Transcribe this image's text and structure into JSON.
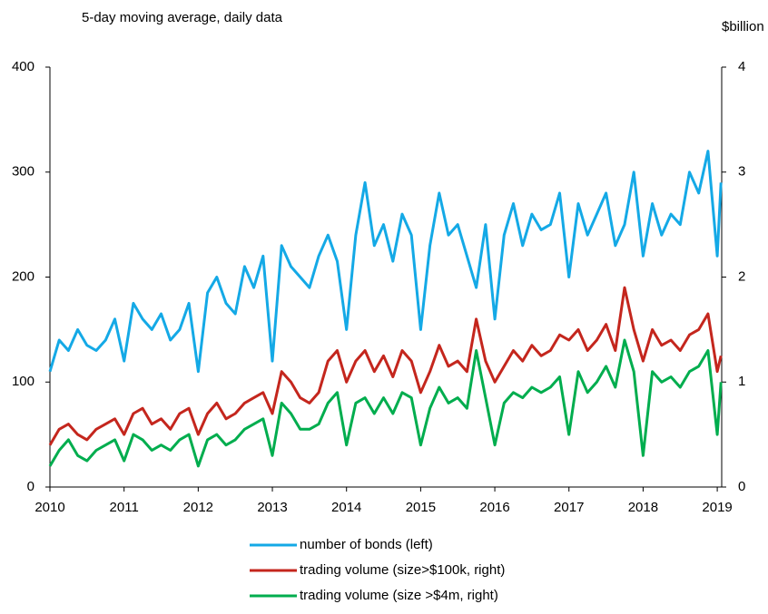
{
  "chart_data": {
    "type": "line",
    "subtitle": "5-day moving average, daily data",
    "y2_label": "$billion",
    "x": [
      2010,
      2010.125,
      2010.25,
      2010.375,
      2010.5,
      2010.625,
      2010.75,
      2010.875,
      2011,
      2011.125,
      2011.25,
      2011.375,
      2011.5,
      2011.625,
      2011.75,
      2011.875,
      2012,
      2012.125,
      2012.25,
      2012.375,
      2012.5,
      2012.625,
      2012.75,
      2012.875,
      2013,
      2013.125,
      2013.25,
      2013.375,
      2013.5,
      2013.625,
      2013.75,
      2013.875,
      2014,
      2014.125,
      2014.25,
      2014.375,
      2014.5,
      2014.625,
      2014.75,
      2014.875,
      2015,
      2015.125,
      2015.25,
      2015.375,
      2015.5,
      2015.625,
      2015.75,
      2015.875,
      2016,
      2016.125,
      2016.25,
      2016.375,
      2016.5,
      2016.625,
      2016.75,
      2016.875,
      2017,
      2017.125,
      2017.25,
      2017.375,
      2017.5,
      2017.625,
      2017.75,
      2017.875,
      2018,
      2018.125,
      2018.25,
      2018.375,
      2018.5,
      2018.625,
      2018.75,
      2018.875,
      2019,
      2019.05
    ],
    "series": [
      {
        "name": "number of bonds (left)",
        "color": "#14a9e6",
        "axis": "y",
        "values": [
          110,
          140,
          130,
          150,
          135,
          130,
          140,
          160,
          120,
          175,
          160,
          150,
          165,
          140,
          150,
          175,
          110,
          185,
          200,
          175,
          165,
          210,
          190,
          220,
          120,
          230,
          210,
          200,
          190,
          220,
          240,
          215,
          150,
          240,
          290,
          230,
          250,
          215,
          260,
          240,
          150,
          230,
          280,
          240,
          250,
          220,
          190,
          250,
          160,
          240,
          270,
          230,
          260,
          245,
          250,
          280,
          200,
          270,
          240,
          260,
          280,
          230,
          250,
          300,
          220,
          270,
          240,
          260,
          250,
          300,
          280,
          320,
          220,
          290
        ]
      },
      {
        "name": "trading volume (size>$100k, right)",
        "color": "#c4261d",
        "axis": "y2",
        "values": [
          0.4,
          0.55,
          0.6,
          0.5,
          0.45,
          0.55,
          0.6,
          0.65,
          0.5,
          0.7,
          0.75,
          0.6,
          0.65,
          0.55,
          0.7,
          0.75,
          0.5,
          0.7,
          0.8,
          0.65,
          0.7,
          0.8,
          0.85,
          0.9,
          0.7,
          1.1,
          1.0,
          0.85,
          0.8,
          0.9,
          1.2,
          1.3,
          1.0,
          1.2,
          1.3,
          1.1,
          1.25,
          1.05,
          1.3,
          1.2,
          0.9,
          1.1,
          1.35,
          1.15,
          1.2,
          1.1,
          1.6,
          1.2,
          1.0,
          1.15,
          1.3,
          1.2,
          1.35,
          1.25,
          1.3,
          1.45,
          1.4,
          1.5,
          1.3,
          1.4,
          1.55,
          1.3,
          1.9,
          1.5,
          1.2,
          1.5,
          1.35,
          1.4,
          1.3,
          1.45,
          1.5,
          1.65,
          1.1,
          1.25
        ]
      },
      {
        "name": "trading volume (size >$4m, right)",
        "color": "#00ad4e",
        "axis": "y2",
        "values": [
          0.2,
          0.35,
          0.45,
          0.3,
          0.25,
          0.35,
          0.4,
          0.45,
          0.25,
          0.5,
          0.45,
          0.35,
          0.4,
          0.35,
          0.45,
          0.5,
          0.2,
          0.45,
          0.5,
          0.4,
          0.45,
          0.55,
          0.6,
          0.65,
          0.3,
          0.8,
          0.7,
          0.55,
          0.55,
          0.6,
          0.8,
          0.9,
          0.4,
          0.8,
          0.85,
          0.7,
          0.85,
          0.7,
          0.9,
          0.85,
          0.4,
          0.75,
          0.95,
          0.8,
          0.85,
          0.75,
          1.3,
          0.85,
          0.4,
          0.8,
          0.9,
          0.85,
          0.95,
          0.9,
          0.95,
          1.05,
          0.5,
          1.1,
          0.9,
          1.0,
          1.15,
          0.95,
          1.4,
          1.1,
          0.3,
          1.1,
          1.0,
          1.05,
          0.95,
          1.1,
          1.15,
          1.3,
          0.5,
          1.0
        ]
      }
    ],
    "xlim": [
      2010,
      2019.06
    ],
    "xticks": [
      2010,
      2011,
      2012,
      2013,
      2014,
      2015,
      2016,
      2017,
      2018,
      2019
    ],
    "ylim": [
      0,
      400
    ],
    "yticks": [
      0,
      100,
      200,
      300,
      400
    ],
    "y2lim": [
      0,
      4
    ],
    "y2ticks": [
      0,
      1,
      2,
      3,
      4
    ],
    "legend": "bottom"
  }
}
